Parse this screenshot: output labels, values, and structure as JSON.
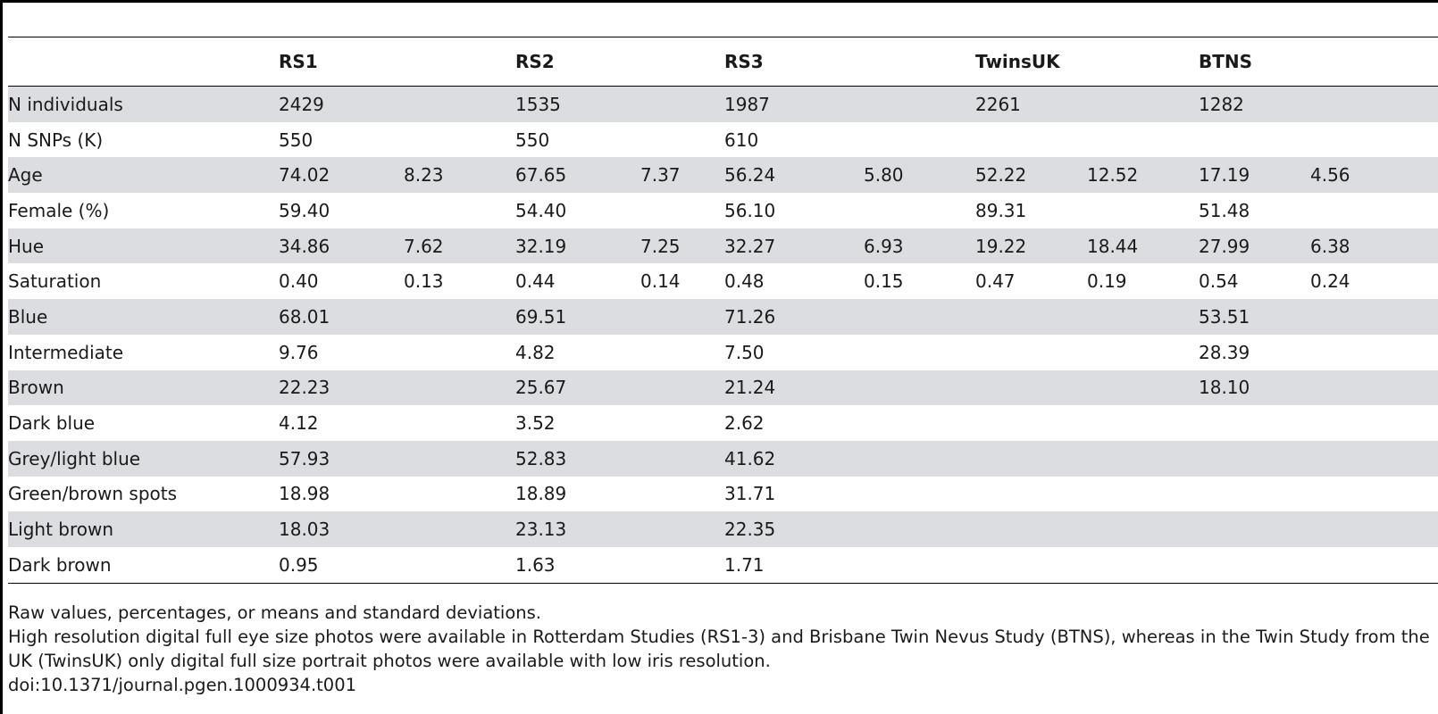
{
  "table": {
    "headers": [
      "",
      "RS1",
      "",
      "RS2",
      "",
      "RS3",
      "",
      "TwinsUK",
      "",
      "BTNS",
      ""
    ],
    "rows": [
      [
        "N individuals",
        "2429",
        "",
        "1535",
        "",
        "1987",
        "",
        "2261",
        "",
        "1282",
        ""
      ],
      [
        "N SNPs (K)",
        "550",
        "",
        "550",
        "",
        "610",
        "",
        "",
        "",
        "",
        ""
      ],
      [
        "Age",
        "74.02",
        "8.23",
        "67.65",
        "7.37",
        "56.24",
        "5.80",
        "52.22",
        "12.52",
        "17.19",
        "4.56"
      ],
      [
        "Female (%)",
        "59.40",
        "",
        "54.40",
        "",
        "56.10",
        "",
        "89.31",
        "",
        "51.48",
        ""
      ],
      [
        "Hue",
        "34.86",
        "7.62",
        "32.19",
        "7.25",
        "32.27",
        "6.93",
        "19.22",
        "18.44",
        "27.99",
        "6.38"
      ],
      [
        "Saturation",
        "0.40",
        "0.13",
        "0.44",
        "0.14",
        "0.48",
        "0.15",
        "0.47",
        "0.19",
        "0.54",
        "0.24"
      ],
      [
        "Blue",
        "68.01",
        "",
        "69.51",
        "",
        "71.26",
        "",
        "",
        "",
        "53.51",
        ""
      ],
      [
        "Intermediate",
        "9.76",
        "",
        "4.82",
        "",
        "7.50",
        "",
        "",
        "",
        "28.39",
        ""
      ],
      [
        "Brown",
        "22.23",
        "",
        "25.67",
        "",
        "21.24",
        "",
        "",
        "",
        "18.10",
        ""
      ],
      [
        "Dark blue",
        "4.12",
        "",
        "3.52",
        "",
        "2.62",
        "",
        "",
        "",
        "",
        ""
      ],
      [
        "Grey/light blue",
        "57.93",
        "",
        "52.83",
        "",
        "41.62",
        "",
        "",
        "",
        "",
        ""
      ],
      [
        "Green/brown spots",
        "18.98",
        "",
        "18.89",
        "",
        "31.71",
        "",
        "",
        "",
        "",
        ""
      ],
      [
        "Light brown",
        "18.03",
        "",
        "23.13",
        "",
        "22.35",
        "",
        "",
        "",
        "",
        ""
      ],
      [
        "Dark brown",
        "0.95",
        "",
        "1.63",
        "",
        "1.71",
        "",
        "",
        "",
        "",
        ""
      ]
    ]
  },
  "notes": {
    "line1": "Raw values, percentages, or means and standard deviations.",
    "line2": "High resolution digital full eye size photos were available in Rotterdam Studies (RS1-3) and Brisbane Twin Nevus Study (BTNS), whereas in the Twin Study from the UK (TwinsUK) only digital full size portrait photos were available with low iris resolution.",
    "doi": "doi:10.1371/journal.pgen.1000934.t001"
  },
  "colors": {
    "shaded_row": "#dcdde0",
    "rule": "#000000"
  }
}
